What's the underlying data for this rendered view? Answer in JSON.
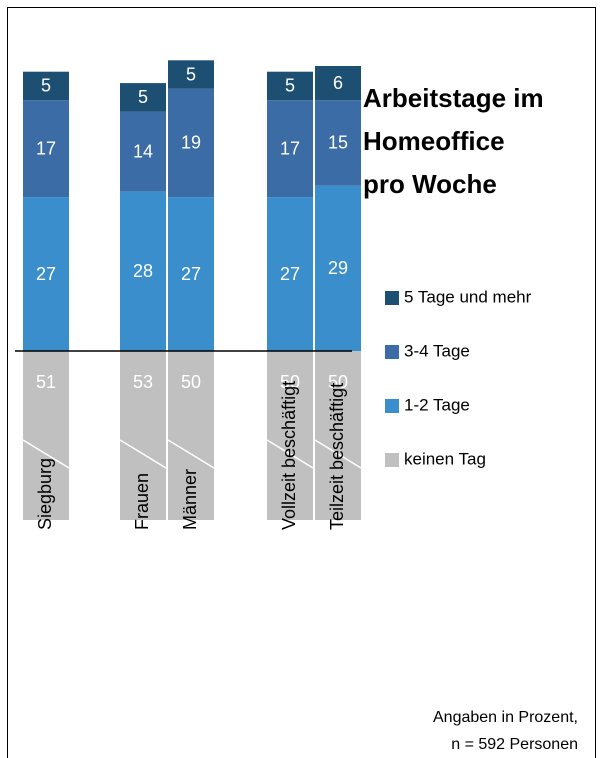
{
  "chart_data": {
    "type": "bar",
    "title": [
      "Arbeitstage im",
      "Homeoffice",
      "pro Woche"
    ],
    "categories": [
      "Siegburg",
      "Frauen",
      "Männer",
      "Vollzeit beschäftigt",
      "Teilzeit beschäftigt"
    ],
    "series": [
      {
        "name": "5 Tage und mehr",
        "color": "#1d4f73",
        "values": [
          5,
          5,
          5,
          5,
          6
        ]
      },
      {
        "name": "3-4 Tage",
        "color": "#3b6ca6",
        "values": [
          17,
          14,
          19,
          17,
          15
        ]
      },
      {
        "name": "1-2 Tage",
        "color": "#3b8ecc",
        "values": [
          27,
          28,
          27,
          27,
          29
        ]
      },
      {
        "name": "keinen Tag",
        "color": "#c0c0c0",
        "values": [
          51,
          53,
          50,
          50,
          50
        ]
      }
    ],
    "notes": [
      "Angaben in Prozent,",
      "n = 592 Personen"
    ]
  }
}
